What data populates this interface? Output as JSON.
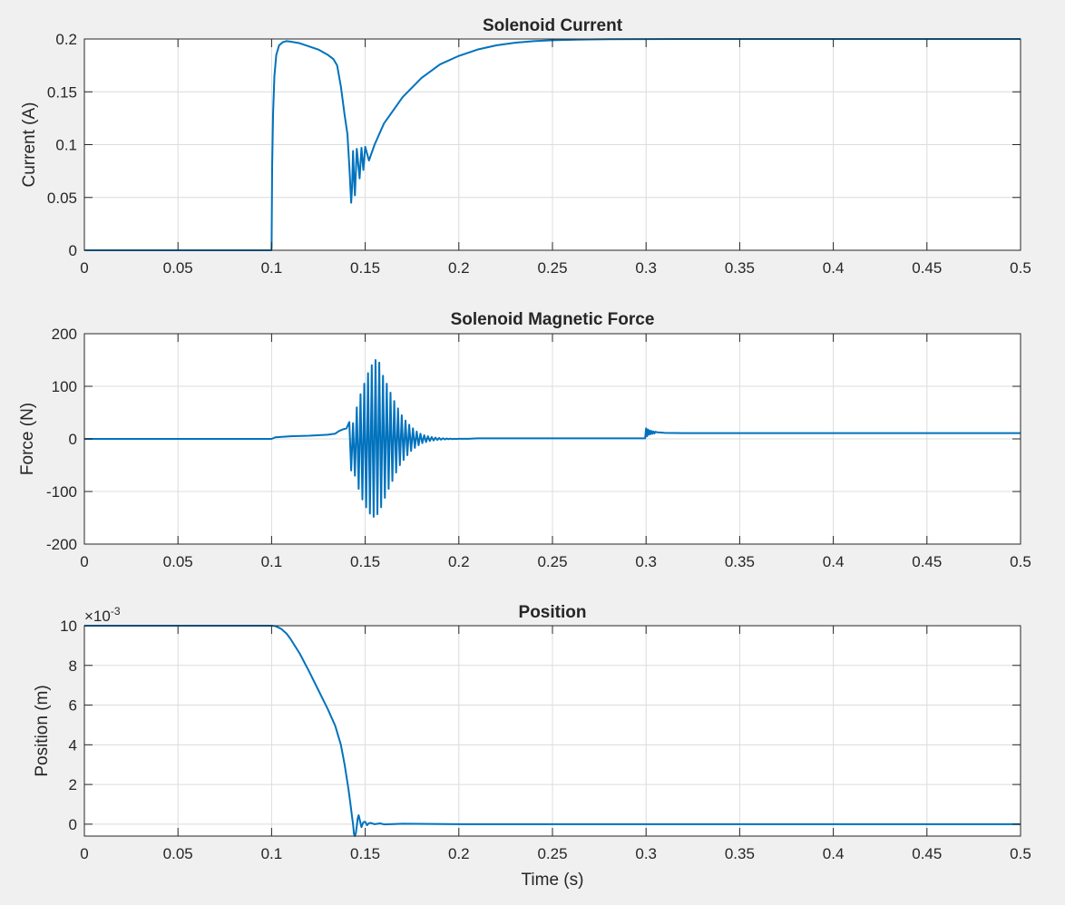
{
  "figure": {
    "background": "#f0f0f0",
    "axes_background": "#ffffff",
    "line_color": "#0072bd",
    "grid": true
  },
  "chart_data": [
    {
      "type": "line",
      "title": "Solenoid Current",
      "xlabel": "",
      "ylabel": "Current (A)",
      "xlim": [
        0,
        0.5
      ],
      "ylim": [
        0,
        0.2
      ],
      "x_ticks": [
        0,
        0.05,
        0.1,
        0.15,
        0.2,
        0.25,
        0.3,
        0.35,
        0.4,
        0.45,
        0.5
      ],
      "x_tick_labels": [
        "0",
        "0.05",
        "0.1",
        "0.15",
        "0.2",
        "0.25",
        "0.3",
        "0.35",
        "0.4",
        "0.45",
        "0.5"
      ],
      "y_ticks": [
        0,
        0.05,
        0.1,
        0.15,
        0.2
      ],
      "y_tick_labels": [
        "0",
        "0.05",
        "0.1",
        "0.15",
        "0.2"
      ],
      "series": [
        {
          "color": "#0072bd",
          "x": [
            0,
            0.0999,
            0.1,
            0.1003,
            0.1008,
            0.1015,
            0.1025,
            0.104,
            0.106,
            0.108,
            0.11,
            0.115,
            0.12,
            0.125,
            0.13,
            0.133,
            0.135,
            0.137,
            0.139,
            0.1405,
            0.1415,
            0.1425,
            0.143,
            0.1435,
            0.144,
            0.1445,
            0.1455,
            0.147,
            0.148,
            0.149,
            0.15,
            0.152,
            0.155,
            0.16,
            0.17,
            0.18,
            0.19,
            0.2,
            0.21,
            0.22,
            0.23,
            0.24,
            0.25,
            0.26,
            0.27,
            0.28,
            0.3,
            0.32,
            0.35,
            0.4,
            0.45,
            0.5
          ],
          "y": [
            0,
            0,
            0.003,
            0.08,
            0.13,
            0.165,
            0.185,
            0.194,
            0.197,
            0.198,
            0.1975,
            0.196,
            0.193,
            0.19,
            0.185,
            0.181,
            0.175,
            0.155,
            0.128,
            0.11,
            0.08,
            0.045,
            0.06,
            0.094,
            0.07,
            0.052,
            0.096,
            0.068,
            0.097,
            0.076,
            0.098,
            0.085,
            0.1,
            0.12,
            0.145,
            0.163,
            0.176,
            0.184,
            0.19,
            0.194,
            0.1965,
            0.198,
            0.1988,
            0.1993,
            0.1996,
            0.1998,
            0.1999,
            0.2,
            0.2,
            0.2,
            0.2,
            0.2
          ]
        }
      ]
    },
    {
      "type": "line",
      "title": "Solenoid Magnetic Force",
      "xlabel": "",
      "ylabel": "Force (N)",
      "xlim": [
        0,
        0.5
      ],
      "ylim": [
        -200,
        200
      ],
      "x_ticks": [
        0,
        0.05,
        0.1,
        0.15,
        0.2,
        0.25,
        0.3,
        0.35,
        0.4,
        0.45,
        0.5
      ],
      "x_tick_labels": [
        "0",
        "0.05",
        "0.1",
        "0.15",
        "0.2",
        "0.25",
        "0.3",
        "0.35",
        "0.4",
        "0.45",
        "0.5"
      ],
      "y_ticks": [
        -200,
        -100,
        0,
        100,
        200
      ],
      "y_tick_labels": [
        "-200",
        "-100",
        "0",
        "100",
        "200"
      ],
      "series": [
        {
          "color": "#0072bd",
          "x": [
            0,
            0.1,
            0.102,
            0.11,
            0.12,
            0.13,
            0.134,
            0.136,
            0.138,
            0.14,
            0.1415,
            0.1425,
            0.1435,
            0.1445,
            0.1455,
            0.1465,
            0.1475,
            0.1485,
            0.1495,
            0.1505,
            0.1515,
            0.1525,
            0.1535,
            0.1545,
            0.1555,
            0.1565,
            0.1575,
            0.1585,
            0.1595,
            0.1605,
            0.1615,
            0.1625,
            0.1635,
            0.1645,
            0.1655,
            0.1665,
            0.1675,
            0.1685,
            0.1695,
            0.1705,
            0.1715,
            0.1725,
            0.1735,
            0.1745,
            0.1755,
            0.1765,
            0.1775,
            0.1785,
            0.1795,
            0.1805,
            0.1815,
            0.1825,
            0.1835,
            0.1845,
            0.1855,
            0.1865,
            0.1875,
            0.1885,
            0.1895,
            0.1905,
            0.1915,
            0.1925,
            0.1935,
            0.1945,
            0.1955,
            0.1965,
            0.1975,
            0.1985,
            0.1995,
            0.205,
            0.21,
            0.25,
            0.2995,
            0.3,
            0.3005,
            0.301,
            0.3015,
            0.302,
            0.3025,
            0.303,
            0.3035,
            0.304,
            0.3045,
            0.305,
            0.306,
            0.308,
            0.31,
            0.315,
            0.32,
            0.33,
            0.35,
            0.4,
            0.45,
            0.5
          ],
          "y": [
            0,
            0,
            3,
            5,
            6,
            8,
            10,
            15,
            18,
            20,
            32,
            -60,
            30,
            -70,
            60,
            -95,
            85,
            -115,
            105,
            -130,
            125,
            -142,
            140,
            -148,
            150,
            -143,
            145,
            -130,
            120,
            -112,
            105,
            -95,
            88,
            -80,
            72,
            -64,
            58,
            -50,
            45,
            -40,
            35,
            -31,
            27,
            -23,
            20,
            -17,
            14,
            -12,
            10,
            -8,
            7,
            -6,
            5,
            -4,
            3.5,
            -3,
            2.5,
            -2,
            1.8,
            -1.5,
            1.2,
            -1,
            0.8,
            -0.6,
            0.5,
            -0.4,
            0.3,
            -0.2,
            0.2,
            0.2,
            1,
            1,
            1,
            20,
            5,
            18,
            8,
            16,
            9,
            15,
            10,
            14,
            10.5,
            13.5,
            12.5,
            12,
            11.5,
            11.2,
            11,
            11,
            11,
            11,
            11,
            11
          ]
        }
      ]
    },
    {
      "type": "line",
      "title": "Position",
      "xlabel": "Time (s)",
      "ylabel": "Position (m)",
      "y_exponent_label": "×10",
      "y_exponent": "-3",
      "xlim": [
        0,
        0.5
      ],
      "ylim": [
        -0.6,
        10
      ],
      "x_ticks": [
        0,
        0.05,
        0.1,
        0.15,
        0.2,
        0.25,
        0.3,
        0.35,
        0.4,
        0.45,
        0.5
      ],
      "x_tick_labels": [
        "0",
        "0.05",
        "0.1",
        "0.15",
        "0.2",
        "0.25",
        "0.3",
        "0.35",
        "0.4",
        "0.45",
        "0.5"
      ],
      "y_ticks": [
        0,
        2,
        4,
        6,
        8,
        10
      ],
      "y_tick_labels": [
        "0",
        "2",
        "4",
        "6",
        "8",
        "10"
      ],
      "series": [
        {
          "color": "#0072bd",
          "x": [
            0,
            0.1,
            0.102,
            0.105,
            0.108,
            0.11,
            0.115,
            0.12,
            0.125,
            0.13,
            0.134,
            0.137,
            0.139,
            0.141,
            0.142,
            0.143,
            0.1435,
            0.144,
            0.1445,
            0.145,
            0.1455,
            0.146,
            0.1465,
            0.147,
            0.148,
            0.149,
            0.15,
            0.151,
            0.152,
            0.153,
            0.155,
            0.158,
            0.16,
            0.17,
            0.2,
            0.3,
            0.4,
            0.5
          ],
          "y": [
            10,
            10,
            9.98,
            9.85,
            9.6,
            9.35,
            8.6,
            7.7,
            6.75,
            5.8,
            4.95,
            4.0,
            3.0,
            1.8,
            1.1,
            0.35,
            0.0,
            -0.5,
            -0.6,
            -0.45,
            -0.1,
            0.3,
            0.45,
            0.25,
            -0.15,
            0.1,
            0.12,
            -0.05,
            0.05,
            0.06,
            0.0,
            0.04,
            -0.01,
            0.02,
            0.0,
            0.0,
            0.0,
            0.0
          ]
        }
      ]
    }
  ]
}
